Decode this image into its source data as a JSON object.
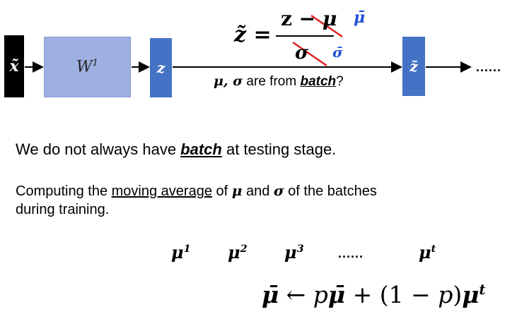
{
  "diagram": {
    "input_label": "x̃",
    "weight_label": "W",
    "weight_sup": "1",
    "z_label": "z",
    "z_tilde_label": "z̃",
    "trailing_dots": "......",
    "formula": {
      "lhs": "z̃ =",
      "numerator_z": "z − ",
      "numerator_mu": "μ",
      "denominator": "σ",
      "replacement_mu": "μ̄",
      "replacement_sigma": "σ̄"
    },
    "batch_question": {
      "mu_sigma": "μ, σ",
      "text_are_from": " are from ",
      "batch": "batch",
      "qmark": "?"
    }
  },
  "text": {
    "line1_prefix": "We do not always have ",
    "line1_batch": "batch",
    "line1_suffix": " at testing stage.",
    "line2_a": "Computing the ",
    "line2_moving": "moving average",
    "line2_b": " of ",
    "line2_mu": "μ",
    "line2_c": " and ",
    "line2_sigma": "σ",
    "line2_d": " of the batches",
    "line3": "during training."
  },
  "sequence": {
    "items": [
      {
        "base": "μ",
        "sup": "1"
      },
      {
        "base": "μ",
        "sup": "2"
      },
      {
        "base": "μ",
        "sup": "3"
      },
      {
        "base": "μ",
        "sup": "t"
      }
    ],
    "dots": "......"
  },
  "update_rule": {
    "mu_bar": "μ̄",
    "arrow": " ← ",
    "p": "p",
    "mu_bar2": "μ̄",
    "plus_part": " + (1 − ",
    "p2": "p",
    "close": ")",
    "mu_t": "μ",
    "mu_t_sup": "t"
  },
  "colors": {
    "black_box": "#000000",
    "weight_box": "#9db0e0",
    "z_box": "#4472c4",
    "strike_red": "#e02020",
    "replacement_blue": "#1f4fd6"
  }
}
